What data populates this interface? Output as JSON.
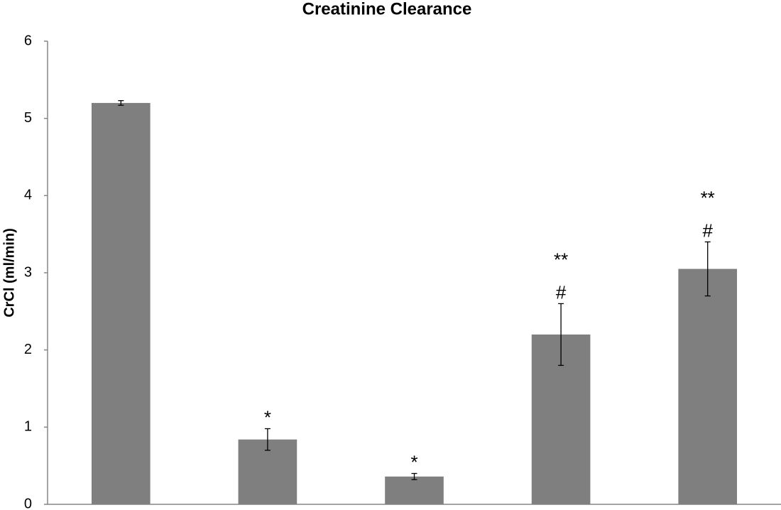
{
  "chart_data": {
    "type": "bar",
    "title": "Creatinine Clearance",
    "y_label": "CrCl (ml/min)",
    "categories": [
      null,
      null,
      null,
      null,
      null
    ],
    "values": [
      5.2,
      0.84,
      0.36,
      2.2,
      3.05
    ],
    "errors": [
      0.03,
      0.14,
      0.04,
      0.4,
      0.35
    ],
    "annotations": [
      [],
      [
        "*"
      ],
      [
        "*"
      ],
      [
        "**",
        "#"
      ],
      [
        "**",
        "#"
      ]
    ],
    "color": "#7f7f7f",
    "ylim": [
      0,
      6
    ],
    "yticks": [
      0,
      1,
      2,
      3,
      4,
      5,
      6
    ],
    "grid": false
  }
}
